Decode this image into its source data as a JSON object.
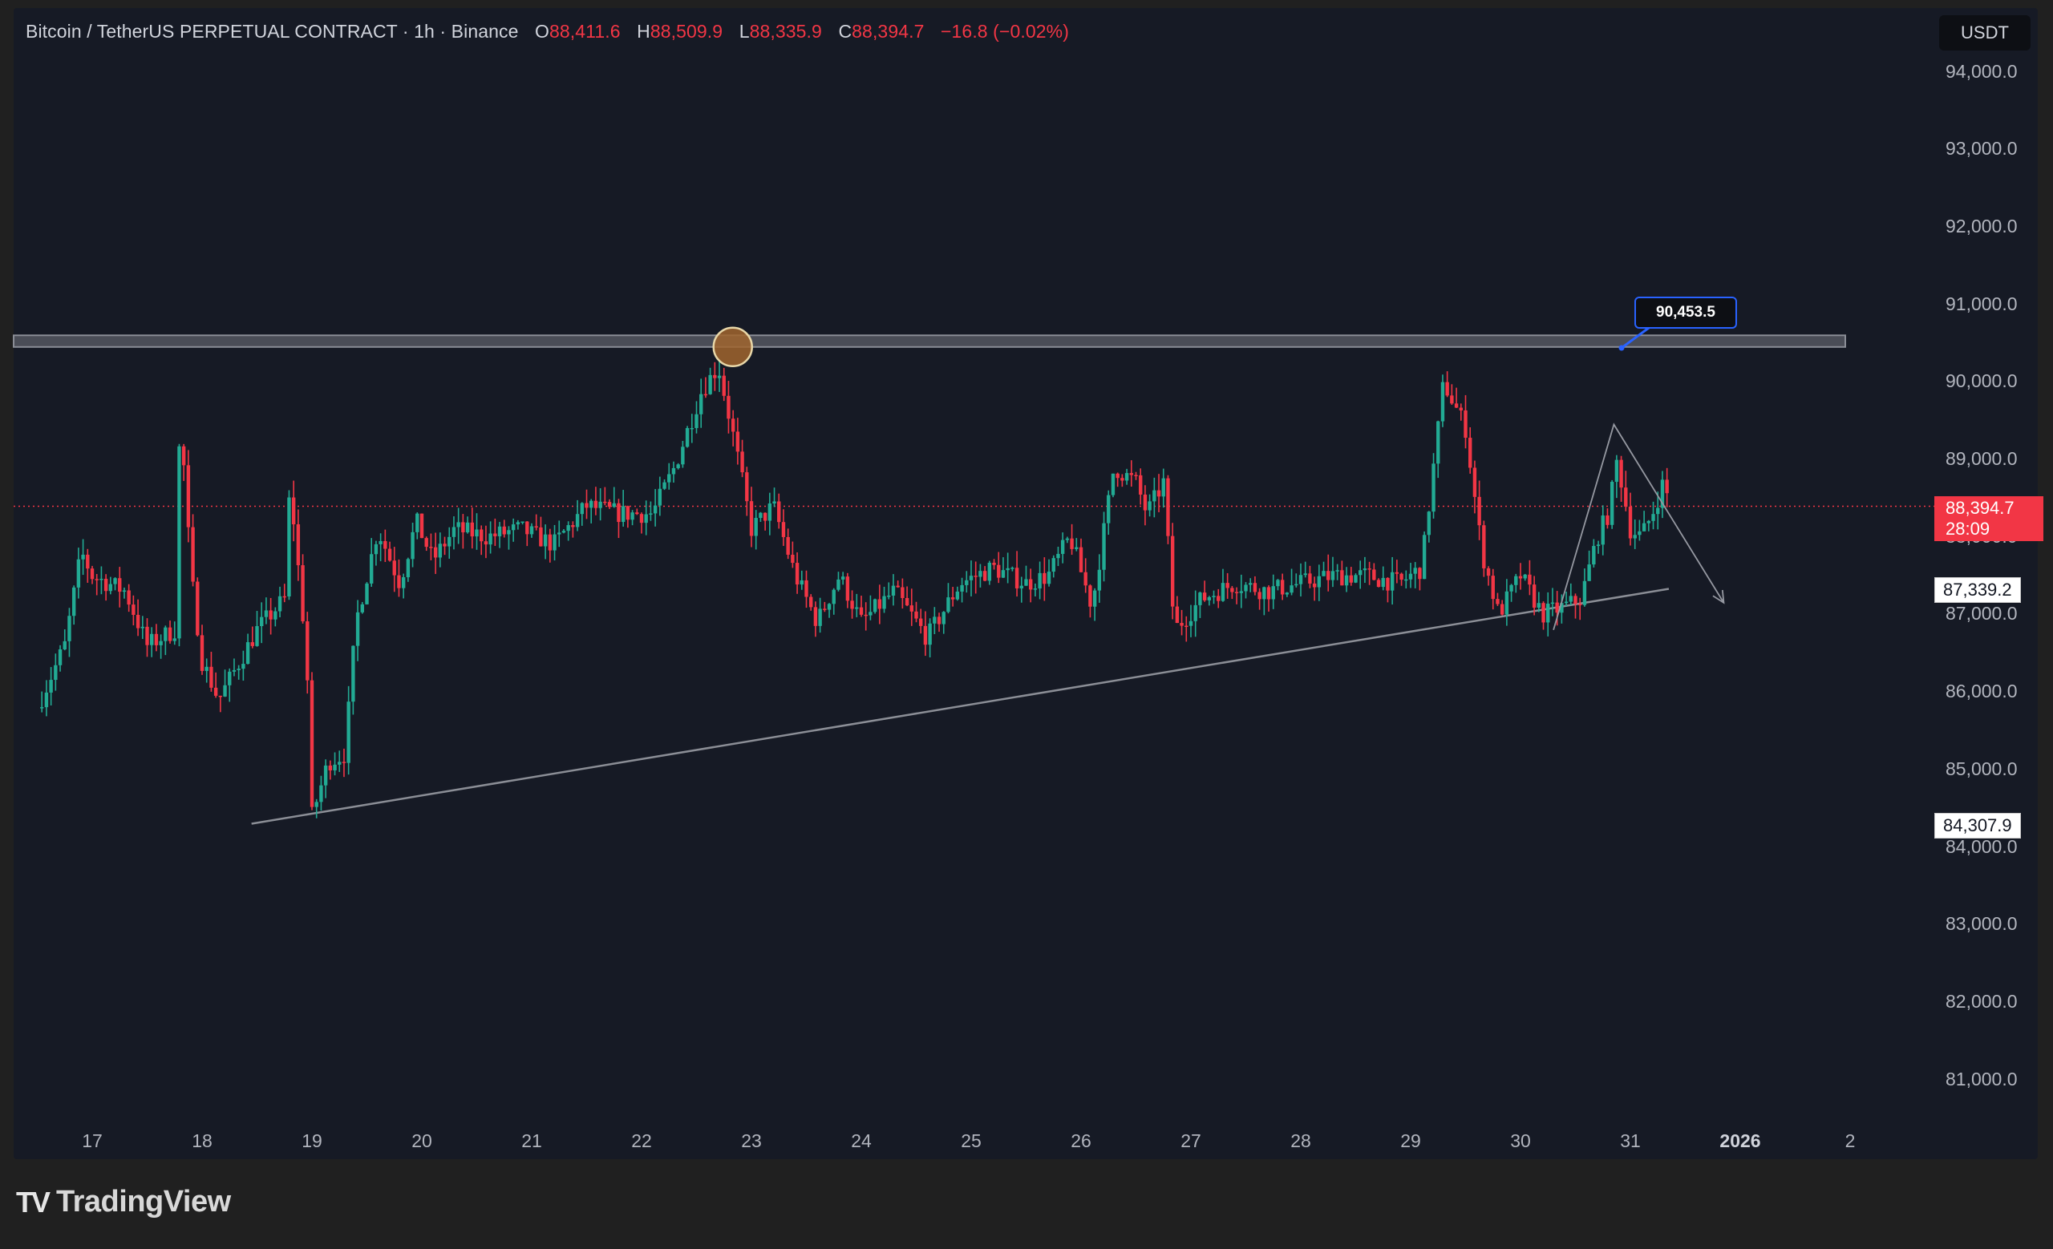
{
  "legend": {
    "symbol": "Bitcoin / TetherUS PERPETUAL CONTRACT · 1h · Binance",
    "o_label": "O",
    "o_value": "88,411.6",
    "h_label": "H",
    "h_value": "88,509.9",
    "l_label": "L",
    "l_value": "88,335.9",
    "c_label": "C",
    "c_value": "88,394.7",
    "change": "−16.8 (−0.02%)"
  },
  "currency_button": "USDT",
  "brand": {
    "logo": "TV",
    "name": "TradingView"
  },
  "price_tags": {
    "last_price": "88,394.7",
    "countdown": "28:09",
    "level_mid": "87,339.2",
    "level_low": "84,307.9"
  },
  "callout": "90,453.5",
  "colors": {
    "up": "#22ab94",
    "down": "#f23645",
    "panel": "#161a25",
    "accent": "#2962ff"
  },
  "chart_data": {
    "type": "candlestick",
    "title": "Bitcoin / TetherUS PERPETUAL CONTRACT · 1h · Binance",
    "ylim": [
      80500,
      94700
    ],
    "y_ticks": [
      "94,000.0",
      "93,000.0",
      "92,000.0",
      "91,000.0",
      "90,000.0",
      "89,000.0",
      "88,000.0",
      "87,000.0",
      "86,000.0",
      "85,000.0",
      "84,000.0",
      "83,000.0",
      "82,000.0",
      "81,000.0"
    ],
    "x_ticks": [
      "17",
      "18",
      "19",
      "20",
      "21",
      "22",
      "23",
      "24",
      "25",
      "26",
      "27",
      "28",
      "29",
      "30",
      "31",
      "2026",
      "2"
    ],
    "grid": false,
    "last_price": 88394.7,
    "price_path": [
      [
        16.5,
        85800
      ],
      [
        16.75,
        86600
      ],
      [
        16.9,
        87800
      ],
      [
        17.0,
        87500
      ],
      [
        17.3,
        87300
      ],
      [
        17.5,
        86600
      ],
      [
        17.75,
        86800
      ],
      [
        17.8,
        89600
      ],
      [
        17.9,
        87500
      ],
      [
        18.0,
        86400
      ],
      [
        18.15,
        85900
      ],
      [
        18.5,
        86800
      ],
      [
        18.75,
        87200
      ],
      [
        18.8,
        88700
      ],
      [
        18.95,
        86500
      ],
      [
        19.0,
        84400
      ],
      [
        19.15,
        85100
      ],
      [
        19.3,
        85200
      ],
      [
        19.4,
        86900
      ],
      [
        19.6,
        88100
      ],
      [
        19.8,
        87400
      ],
      [
        19.95,
        88200
      ],
      [
        20.1,
        87700
      ],
      [
        20.3,
        88100
      ],
      [
        20.6,
        88000
      ],
      [
        20.9,
        88100
      ],
      [
        21.2,
        87900
      ],
      [
        21.5,
        88400
      ],
      [
        21.8,
        88300
      ],
      [
        22.1,
        88300
      ],
      [
        22.3,
        88900
      ],
      [
        22.55,
        89900
      ],
      [
        22.7,
        90200
      ],
      [
        22.85,
        89200
      ],
      [
        23.0,
        88100
      ],
      [
        23.2,
        88400
      ],
      [
        23.4,
        87500
      ],
      [
        23.6,
        86900
      ],
      [
        23.8,
        87500
      ],
      [
        24.0,
        86900
      ],
      [
        24.3,
        87300
      ],
      [
        24.6,
        86700
      ],
      [
        24.9,
        87400
      ],
      [
        25.2,
        87600
      ],
      [
        25.5,
        87400
      ],
      [
        25.7,
        87500
      ],
      [
        25.9,
        88000
      ],
      [
        26.1,
        87100
      ],
      [
        26.3,
        88900
      ],
      [
        26.5,
        88700
      ],
      [
        26.6,
        88300
      ],
      [
        26.75,
        88700
      ],
      [
        26.85,
        86800
      ],
      [
        27.1,
        87200
      ],
      [
        27.4,
        87400
      ],
      [
        27.7,
        87300
      ],
      [
        28.0,
        87400
      ],
      [
        28.3,
        87500
      ],
      [
        28.6,
        87500
      ],
      [
        28.9,
        87400
      ],
      [
        29.1,
        87600
      ],
      [
        29.3,
        90000
      ],
      [
        29.5,
        89400
      ],
      [
        29.65,
        87800
      ],
      [
        29.8,
        87000
      ],
      [
        30.0,
        87500
      ],
      [
        30.2,
        87000
      ],
      [
        30.4,
        87100
      ],
      [
        30.55,
        87200
      ],
      [
        30.7,
        88000
      ],
      [
        30.8,
        88300
      ],
      [
        30.88,
        89000
      ],
      [
        31.0,
        88100
      ],
      [
        31.1,
        88000
      ],
      [
        31.2,
        88300
      ],
      [
        31.3,
        88700
      ],
      [
        31.37,
        88394.7
      ]
    ],
    "annotations": {
      "resistance_zone": [
        90450,
        90600
      ],
      "ascending_trendline": [
        [
          18.45,
          84300
        ],
        [
          31.35,
          87330
        ]
      ],
      "projection": [
        [
          30.3,
          86800
        ],
        [
          30.85,
          89450
        ],
        [
          31.85,
          87150
        ]
      ],
      "marked_high": [
        22.83,
        90450
      ]
    }
  }
}
